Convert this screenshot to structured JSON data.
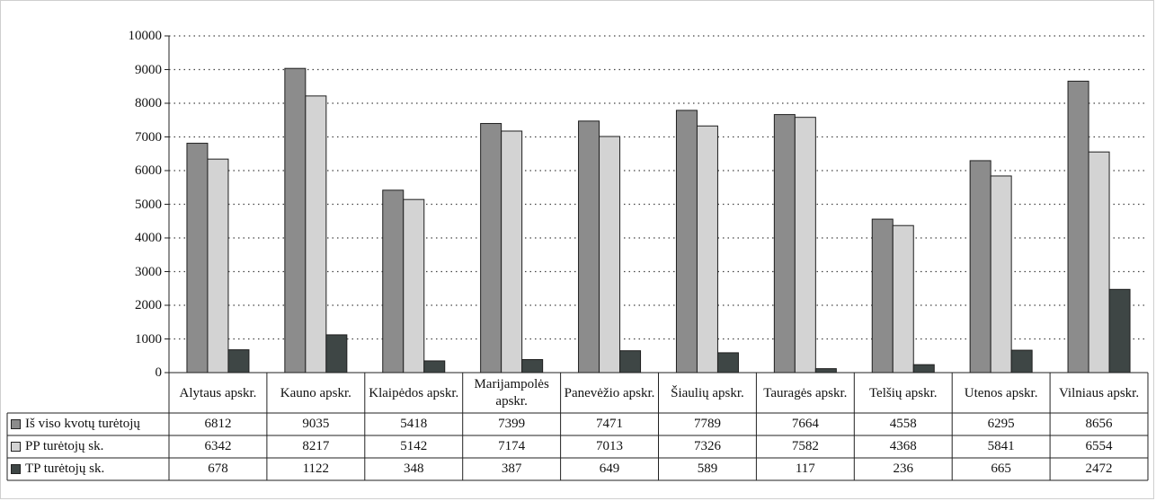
{
  "chart_data": {
    "type": "bar",
    "categories": [
      "Alytaus apskr.",
      "Kauno apskr.",
      "Klaipėdos apskr.",
      "Marijampolės apskr.",
      "Panevėžio apskr.",
      "Šiaulių apskr.",
      "Tauragės apskr.",
      "Telšių apskr.",
      "Utenos apskr.",
      "Vilniaus apskr."
    ],
    "series": [
      {
        "name": "Iš viso kvotų turėtojų",
        "color": "#8c8c8c",
        "values": [
          6812,
          9035,
          5418,
          7399,
          7471,
          7789,
          7664,
          4558,
          6295,
          8656
        ]
      },
      {
        "name": "PP turėtojų sk.",
        "color": "#d3d3d3",
        "values": [
          6342,
          8217,
          5142,
          7174,
          7013,
          7326,
          7582,
          4368,
          5841,
          6554
        ]
      },
      {
        "name": "TP turėtojų sk.",
        "color": "#3e4645",
        "values": [
          678,
          1122,
          348,
          387,
          649,
          589,
          117,
          236,
          665,
          2472
        ]
      }
    ],
    "ylim": [
      0,
      10000
    ],
    "yticks": [
      0,
      1000,
      2000,
      3000,
      4000,
      5000,
      6000,
      7000,
      8000,
      9000,
      10000
    ],
    "grid": "dotted horizontal",
    "legend": "data table below chart"
  }
}
